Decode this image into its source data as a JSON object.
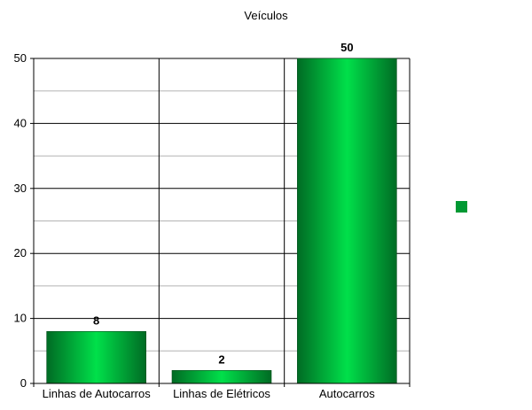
{
  "chart_data": {
    "type": "bar",
    "title": "Veículos",
    "categories": [
      "Linhas de Autocarros",
      "Linhas de Elétricos",
      "Autocarros"
    ],
    "series": [
      {
        "values": [
          8,
          2,
          50
        ]
      }
    ],
    "ylim": [
      0,
      50
    ],
    "yticks": [
      0,
      10,
      20,
      30,
      40,
      50
    ],
    "grid": true,
    "legend_position": "right",
    "colors": {
      "bar_dark": "#006b24",
      "bar_light": "#00e04a",
      "legend": "#009933"
    }
  }
}
